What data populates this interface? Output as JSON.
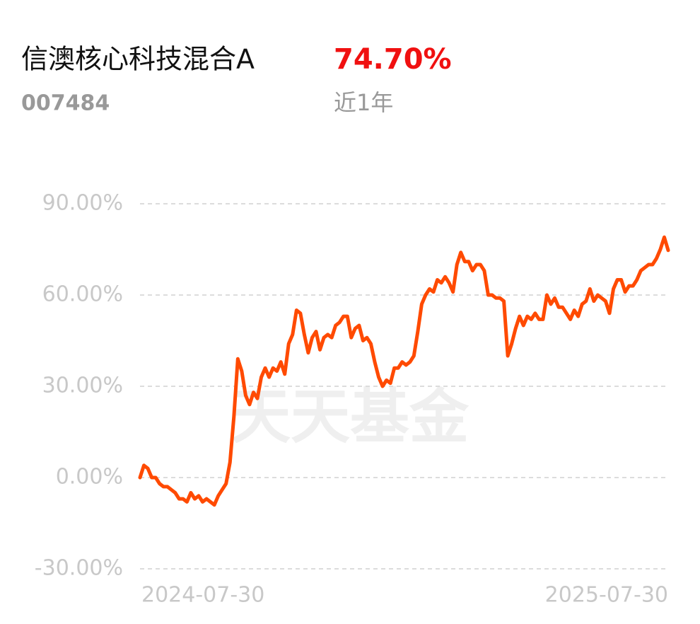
{
  "header": {
    "fund_name": "信澳核心科技混合A",
    "fund_code": "007484",
    "return": {
      "value": 74.7,
      "label": "74.70%"
    },
    "period": "近1年"
  },
  "watermark": "天天基金",
  "chart_data": {
    "type": "line",
    "categories": [
      "2024-07-30",
      null,
      null,
      null,
      null,
      null,
      null,
      null,
      null,
      null,
      null,
      null,
      null,
      null,
      null,
      null,
      null,
      null,
      null,
      null,
      null,
      null,
      null,
      null,
      null,
      null,
      null,
      null,
      null,
      null,
      null,
      null,
      null,
      null,
      null,
      null,
      null,
      null,
      null,
      null,
      null,
      null,
      null,
      null,
      null,
      null,
      null,
      null,
      null,
      null,
      null,
      null,
      null,
      null,
      null,
      null,
      null,
      null,
      null,
      null,
      null,
      null,
      null,
      null,
      null,
      null,
      null,
      null,
      null,
      null,
      null,
      null,
      null,
      null,
      null,
      null,
      null,
      null,
      null,
      null,
      null,
      null,
      null,
      null,
      null,
      null,
      null,
      null,
      null,
      null,
      null,
      null,
      null,
      null,
      null,
      null,
      null,
      null,
      null,
      null,
      null,
      null,
      null,
      null,
      null,
      null,
      null,
      null,
      null,
      null,
      null,
      null,
      null,
      null,
      null,
      null,
      null,
      null,
      null,
      null,
      null,
      null,
      null,
      null,
      null,
      null,
      null,
      null,
      null,
      null,
      null,
      null,
      null,
      null,
      null,
      "2025-07-30"
    ],
    "series": [
      {
        "color": "#ff4a00",
        "values": [
          0,
          4,
          3,
          0,
          0,
          -2,
          -3,
          -3,
          -4,
          -5,
          -7,
          -7,
          -8,
          -5,
          -7,
          -6,
          -8,
          -7,
          -8,
          -9,
          -6,
          -4,
          -2,
          5,
          20,
          39,
          35,
          27,
          24,
          28,
          26,
          33,
          36,
          33,
          36,
          35,
          38,
          34,
          44,
          47,
          55,
          54,
          47,
          41,
          46,
          48,
          42,
          46,
          47,
          46,
          50,
          51,
          53,
          53,
          46,
          49,
          50,
          45,
          46,
          44,
          38,
          33,
          30,
          32,
          31,
          36,
          36,
          38,
          37,
          38,
          40,
          48,
          57,
          60,
          62,
          61,
          65,
          64,
          66,
          64,
          61,
          70,
          74,
          71,
          71,
          68,
          70,
          70,
          68,
          60,
          60,
          59,
          59,
          58,
          40,
          44,
          49,
          53,
          50,
          53,
          52,
          54,
          52,
          52,
          60,
          57,
          59,
          56,
          56,
          54,
          52,
          55,
          53,
          57,
          58,
          62,
          58,
          60,
          59,
          58,
          54,
          62,
          65,
          65,
          61,
          63,
          63,
          65,
          68,
          69,
          70,
          70,
          72,
          75,
          79,
          74.7
        ]
      }
    ],
    "ylim": [
      -30,
      90
    ],
    "yticks": [
      {
        "value": -30,
        "label": "-30.00%"
      },
      {
        "value": 0,
        "label": "0.00%"
      },
      {
        "value": 30,
        "label": "30.00%"
      },
      {
        "value": 60,
        "label": "60.00%"
      },
      {
        "value": 90,
        "label": "90.00%"
      }
    ],
    "grid": true
  }
}
